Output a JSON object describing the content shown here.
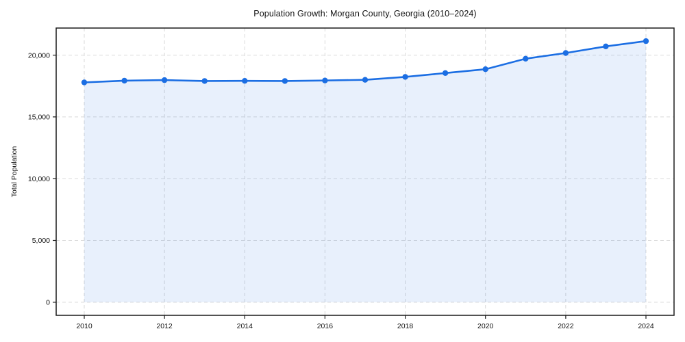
{
  "figure": {
    "title": "Population Growth: Morgan County, Georgia (2010–2024)"
  },
  "chart_data": {
    "type": "line",
    "title": "Population Growth: Morgan County, Georgia (2010–2024)",
    "xlabel": "",
    "ylabel": "Total Population",
    "x": [
      2010,
      2011,
      2012,
      2013,
      2014,
      2015,
      2016,
      2017,
      2018,
      2019,
      2020,
      2021,
      2022,
      2023,
      2024
    ],
    "series": [
      {
        "name": "Total Population",
        "values": [
          17790,
          17935,
          17975,
          17905,
          17915,
          17905,
          17945,
          18000,
          18240,
          18550,
          18860,
          19710,
          20170,
          20705,
          21130
        ]
      }
    ],
    "xlim": [
      2009.3,
      2024.7
    ],
    "ylim": [
      -1060,
      22190
    ],
    "xticks": [
      2010,
      2012,
      2014,
      2016,
      2018,
      2020,
      2022,
      2024
    ],
    "xtick_labels": [
      "2010",
      "2012",
      "2014",
      "2016",
      "2018",
      "2020",
      "2022",
      "2024"
    ],
    "yticks": [
      0,
      5000,
      10000,
      15000,
      20000
    ],
    "ytick_labels": [
      "0",
      "5,000",
      "10,000",
      "15,000",
      "20,000"
    ],
    "grid": true,
    "grid_style": "dashed",
    "legend": false,
    "area_fill": true,
    "area_baseline": 0,
    "marker": "circle",
    "line_color": "#1b6ee3",
    "fill_color": "rgba(27,110,227,0.10)",
    "grid_color": "#d9d9d9",
    "spine_color": "#1a1a1a",
    "text_color": "#111111"
  }
}
